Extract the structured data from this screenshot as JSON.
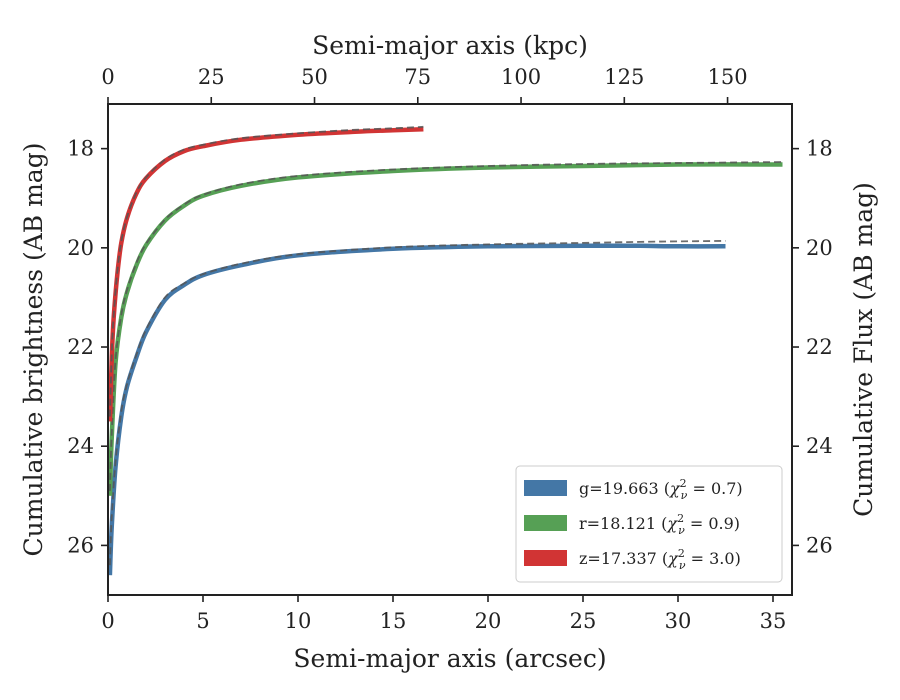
{
  "chart_data": {
    "type": "line",
    "x_axis": {
      "label": "Semi-major axis (arcsec)",
      "range": [
        0,
        36
      ],
      "ticks": [
        0,
        5,
        10,
        15,
        20,
        25,
        30,
        35
      ]
    },
    "x_axis_top": {
      "label": "Semi-major axis (kpc)",
      "range": [
        0,
        165.6
      ],
      "ticks": [
        0,
        25,
        50,
        75,
        100,
        125,
        150
      ]
    },
    "y_axis_left": {
      "label": "Cumulative brightness (AB mag)",
      "range": [
        27,
        17.1
      ],
      "inverted": true,
      "ticks": [
        18,
        20,
        22,
        24,
        26
      ]
    },
    "y_axis_right": {
      "label": "Cumulative Flux (AB mag)",
      "range": [
        27,
        17.1
      ],
      "inverted": true,
      "ticks": [
        18,
        20,
        22,
        24,
        26
      ]
    },
    "legend": {
      "placement": "lower-right",
      "entries": [
        {
          "prefix": "g=19.663",
          "chi": "0.7",
          "color": "#4477a6"
        },
        {
          "prefix": "r=18.121",
          "chi": "0.9",
          "color": "#56a055"
        },
        {
          "prefix": "z=17.337",
          "chi": "3.0",
          "color": "#d13434"
        }
      ]
    },
    "series": [
      {
        "band": "g",
        "color": "#4477a6",
        "x": [
          0.1,
          0.2,
          0.4,
          0.7,
          1.0,
          1.5,
          2.0,
          3.0,
          4.0,
          5.0,
          7.0,
          10.0,
          15.0,
          20.0,
          25.0,
          28.0,
          30.0,
          32.5
        ],
        "obs": [
          26.6,
          25.6,
          24.4,
          23.4,
          22.8,
          22.2,
          21.7,
          21.05,
          20.75,
          20.55,
          20.35,
          20.15,
          20.02,
          19.97,
          19.96,
          19.96,
          19.97,
          19.97
        ],
        "model": [
          26.4,
          25.4,
          24.3,
          23.3,
          22.75,
          22.15,
          21.65,
          21.0,
          20.72,
          20.53,
          20.32,
          20.13,
          19.99,
          19.93,
          19.9,
          19.88,
          19.87,
          19.86
        ]
      },
      {
        "band": "r",
        "color": "#56a055",
        "x": [
          0.1,
          0.2,
          0.4,
          0.7,
          1.0,
          1.5,
          2.0,
          3.0,
          4.0,
          5.0,
          7.0,
          10.0,
          15.0,
          20.0,
          25.0,
          30.0,
          35.5
        ],
        "obs": [
          25.0,
          23.8,
          22.3,
          21.4,
          20.9,
          20.35,
          19.95,
          19.45,
          19.15,
          18.95,
          18.75,
          18.58,
          18.45,
          18.38,
          18.35,
          18.32,
          18.32
        ],
        "model": [
          24.9,
          23.7,
          22.25,
          21.35,
          20.85,
          20.3,
          19.92,
          19.43,
          19.13,
          18.93,
          18.72,
          18.55,
          18.42,
          18.35,
          18.31,
          18.29,
          18.27
        ]
      },
      {
        "band": "z",
        "color": "#d13434",
        "x": [
          0.1,
          0.2,
          0.3,
          0.5,
          0.7,
          1.0,
          1.5,
          2.0,
          3.0,
          4.0,
          5.0,
          7.0,
          10.0,
          13.0,
          15.0,
          16.6
        ],
        "obs": [
          23.5,
          22.2,
          21.4,
          20.5,
          19.9,
          19.4,
          18.9,
          18.6,
          18.25,
          18.05,
          17.95,
          17.82,
          17.72,
          17.66,
          17.63,
          17.61
        ],
        "model": [
          23.4,
          22.1,
          21.35,
          20.45,
          19.87,
          19.38,
          18.88,
          18.58,
          18.22,
          18.02,
          17.92,
          17.79,
          17.69,
          17.62,
          17.59,
          17.56
        ]
      }
    ]
  }
}
